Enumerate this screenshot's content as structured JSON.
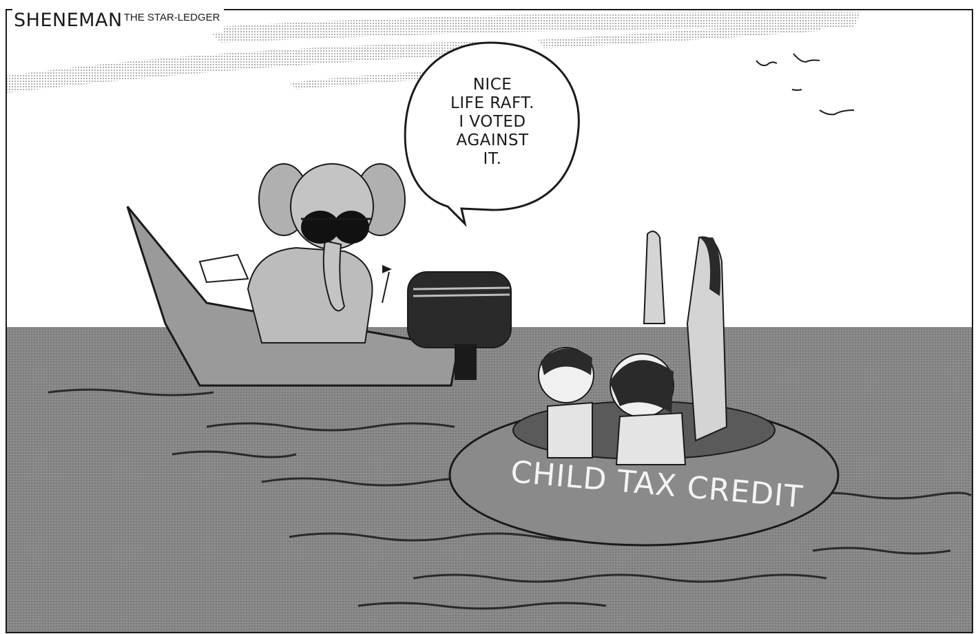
{
  "cartoon": {
    "signature": {
      "artist": "SHENEMAN",
      "publication": "THE STAR-LEDGER"
    },
    "speech_bubble": {
      "lines": [
        "NICE",
        "LIFE RAFT.",
        "I VOTED",
        "AGAINST",
        "IT."
      ]
    },
    "raft": {
      "label": "CHILD TAX CREDIT"
    },
    "colors": {
      "sea": "#8c8c8c",
      "sky_haze": "#d2d2d2",
      "boat_hull": "#9a9a9a",
      "raft": "#8a8a8a",
      "ink": "#1a1a1a"
    }
  }
}
